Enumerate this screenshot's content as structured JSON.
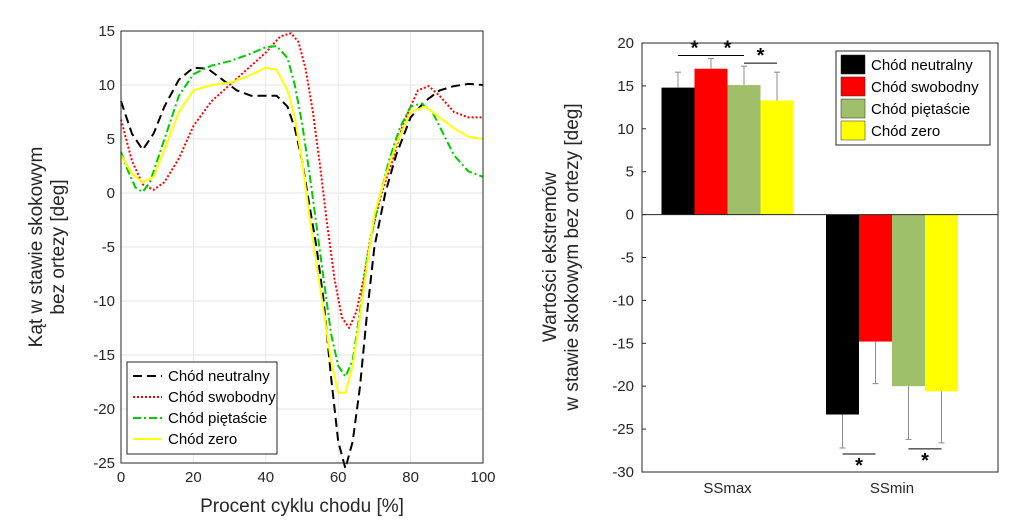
{
  "chart_data": [
    {
      "type": "line",
      "xlabel": "Procent cyklu chodu [%]",
      "ylabel": [
        "Kąt w stawie skokowym",
        "bez ortezy [deg]"
      ],
      "xlim": [
        0,
        100
      ],
      "ylim": [
        -25,
        15
      ],
      "xticks": [
        0,
        20,
        40,
        60,
        80,
        100
      ],
      "yticks": [
        15,
        10,
        5,
        0,
        -5,
        -10,
        -15,
        -20,
        -25
      ],
      "grid": true,
      "legend_position": "bottom-left",
      "series": [
        {
          "name": "Chód neutralny",
          "color": "#000000",
          "dash": "dashed",
          "x": [
            0,
            3,
            6,
            9,
            12,
            16,
            20,
            24,
            28,
            32,
            36,
            40,
            43,
            46,
            48,
            50,
            52,
            54,
            56,
            58,
            60,
            62,
            64,
            66,
            68,
            70,
            73,
            76,
            80,
            84,
            88,
            92,
            96,
            100
          ],
          "y": [
            8.5,
            5.5,
            4,
            5.5,
            8,
            10.5,
            11.6,
            11.5,
            10.5,
            9.5,
            9,
            9,
            9,
            8,
            6,
            3,
            -1,
            -5,
            -10,
            -17,
            -23,
            -25.5,
            -23,
            -18,
            -11,
            -5,
            0,
            3.5,
            7,
            8.5,
            9.5,
            9.9,
            10.1,
            10
          ]
        },
        {
          "name": "Chód swobodny",
          "color": "#ff0000",
          "dash": "dotted",
          "x": [
            0,
            3,
            6,
            9,
            12,
            16,
            20,
            25,
            30,
            35,
            40,
            44,
            47,
            49,
            51,
            53,
            55,
            57,
            59,
            61,
            63,
            65,
            67,
            69,
            72,
            75,
            78,
            82,
            85,
            88,
            92,
            96,
            100
          ],
          "y": [
            6.8,
            3,
            0.8,
            0.3,
            1,
            3.2,
            6.2,
            8.5,
            10,
            11.5,
            13,
            14.5,
            14.8,
            14,
            11.5,
            7.5,
            2.5,
            -3,
            -8,
            -11.5,
            -12.5,
            -11,
            -8,
            -4,
            0,
            3,
            6.5,
            9.5,
            9.9,
            9,
            7.5,
            7,
            7
          ]
        },
        {
          "name": "Chód piętaście",
          "color": "#00cc00",
          "dash": "dashdot",
          "x": [
            0,
            2,
            4,
            6,
            8,
            10,
            13,
            16,
            20,
            25,
            30,
            35,
            40,
            43,
            46,
            48,
            50,
            52,
            54,
            56,
            58,
            60,
            62,
            64,
            66,
            68,
            71,
            74,
            77,
            80,
            83,
            86,
            89,
            92,
            96,
            100
          ],
          "y": [
            3.8,
            2,
            0.5,
            0.1,
            1,
            3,
            6,
            9,
            11,
            11.8,
            12.2,
            12.8,
            13.5,
            13.6,
            12.5,
            10,
            6.5,
            2,
            -3,
            -8,
            -13,
            -16,
            -17,
            -15.5,
            -11,
            -6,
            -1,
            3,
            6,
            8,
            8.3,
            7.5,
            5.5,
            3.5,
            2,
            1.5
          ]
        },
        {
          "name": "Chód zero",
          "color": "#ffff00",
          "dash": "solid",
          "x": [
            0,
            3,
            6,
            9,
            12,
            16,
            20,
            25,
            30,
            35,
            40,
            43,
            46,
            48,
            50,
            52,
            54,
            56,
            58,
            60,
            62,
            64,
            66,
            68,
            70,
            73,
            76,
            80,
            84,
            88,
            92,
            96,
            100
          ],
          "y": [
            3.5,
            1.8,
            1,
            1.5,
            4,
            7.5,
            9.5,
            10,
            10.2,
            10.8,
            11.6,
            11.4,
            9.5,
            7,
            3,
            -2,
            -6.5,
            -11,
            -15.5,
            -18.5,
            -18.5,
            -16,
            -11.5,
            -6.5,
            -2,
            1.5,
            4.5,
            7.5,
            8,
            7,
            6,
            5.2,
            5
          ]
        }
      ]
    },
    {
      "type": "bar",
      "ylabel": [
        "Wartości ekstremów",
        "w stawie skokowym bez ortezy [deg]"
      ],
      "ylim": [
        -30,
        20
      ],
      "yticks": [
        20,
        15,
        10,
        5,
        0,
        -5,
        -10,
        -15,
        -20,
        -25,
        -30
      ],
      "grid": false,
      "legend_position": "top-right",
      "categories": [
        "SSmax",
        "SSmin"
      ],
      "series": [
        {
          "name": "Chód neutralny",
          "color": "#000000",
          "values": [
            14.8,
            -23.3
          ],
          "err": [
            1.8,
            3.9
          ]
        },
        {
          "name": "Chód swobodny",
          "color": "#ff0000",
          "values": [
            17.0,
            -14.8
          ],
          "err": [
            1.2,
            4.9
          ]
        },
        {
          "name": "Chód piętaście",
          "color": "#a0bf6a",
          "values": [
            15.1,
            -20.0
          ],
          "err": [
            2.2,
            6.2
          ]
        },
        {
          "name": "Chód zero",
          "color": "#ffff00",
          "values": [
            13.3,
            -20.6
          ],
          "err": [
            3.3,
            6.0
          ]
        }
      ],
      "significance": [
        {
          "category": 0,
          "from": 0,
          "to": 1,
          "label": "*"
        },
        {
          "category": 0,
          "from": 1,
          "to": 2,
          "label": "*"
        },
        {
          "category": 0,
          "from": 2,
          "to": 3,
          "label": "*"
        },
        {
          "category": 1,
          "from": 0,
          "to": 1,
          "label": "*"
        },
        {
          "category": 1,
          "from": 2,
          "to": 3,
          "label": "*"
        }
      ]
    }
  ]
}
